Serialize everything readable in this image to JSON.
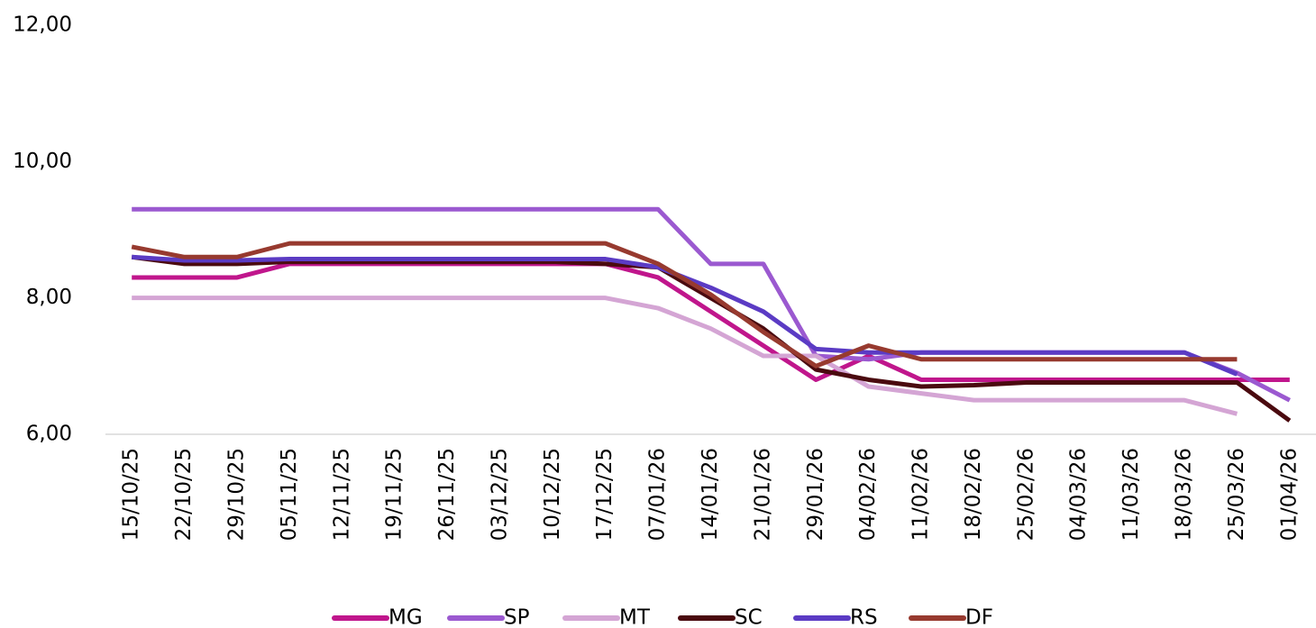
{
  "chart_data": {
    "type": "line",
    "categories": [
      "15/10/25",
      "22/10/25",
      "29/10/25",
      "05/11/25",
      "12/11/25",
      "19/11/25",
      "26/11/25",
      "03/12/25",
      "10/12/25",
      "17/12/25",
      "07/01/26",
      "14/01/26",
      "21/01/26",
      "29/01/26",
      "04/02/26",
      "11/02/26",
      "18/02/26",
      "25/02/26",
      "04/03/26",
      "11/03/26",
      "18/03/26",
      "25/03/26",
      "01/04/26"
    ],
    "series": [
      {
        "name": "MG",
        "color": "#c0168c",
        "values": [
          8.3,
          8.3,
          8.3,
          8.5,
          8.5,
          8.5,
          8.5,
          8.5,
          8.5,
          8.5,
          8.3,
          7.8,
          7.3,
          6.8,
          7.15,
          6.8,
          6.8,
          6.8,
          6.8,
          6.8,
          6.8,
          6.8,
          6.8
        ]
      },
      {
        "name": "SP",
        "color": "#9b59d0",
        "values": [
          9.3,
          9.3,
          9.3,
          9.3,
          9.3,
          9.3,
          9.3,
          9.3,
          9.3,
          9.3,
          9.3,
          8.5,
          8.5,
          7.15,
          7.1,
          7.2,
          7.2,
          7.2,
          7.2,
          7.2,
          7.2,
          6.9,
          6.5
        ]
      },
      {
        "name": "MT",
        "color": "#d4a5d4",
        "values": [
          8.0,
          8.0,
          8.0,
          8.0,
          8.0,
          8.0,
          8.0,
          8.0,
          8.0,
          8.0,
          7.85,
          7.55,
          7.15,
          7.15,
          6.7,
          6.6,
          6.5,
          6.5,
          6.5,
          6.5,
          6.5,
          6.3,
          null
        ]
      },
      {
        "name": "SC",
        "color": "#4a0a0f",
        "values": [
          8.6,
          8.5,
          8.5,
          8.53,
          8.53,
          8.53,
          8.53,
          8.53,
          8.53,
          8.5,
          8.45,
          8.0,
          7.55,
          6.95,
          6.8,
          6.7,
          6.72,
          6.76,
          6.76,
          6.76,
          6.76,
          6.76,
          6.2
        ]
      },
      {
        "name": "RS",
        "color": "#5b3bc4",
        "values": [
          8.6,
          8.55,
          8.55,
          8.57,
          8.57,
          8.57,
          8.57,
          8.57,
          8.57,
          8.57,
          8.45,
          8.15,
          7.8,
          7.25,
          7.2,
          7.2,
          7.2,
          7.2,
          7.2,
          7.2,
          7.2,
          6.88,
          null
        ]
      },
      {
        "name": "DF",
        "color": "#973a2f",
        "values": [
          8.75,
          8.6,
          8.6,
          8.8,
          8.8,
          8.8,
          8.8,
          8.8,
          8.8,
          8.8,
          8.5,
          8.05,
          7.5,
          7.0,
          7.3,
          7.1,
          7.1,
          7.1,
          7.1,
          7.1,
          7.1,
          7.1,
          null
        ]
      }
    ],
    "ylim": [
      6,
      12
    ],
    "yticks": [
      {
        "value": 6,
        "label": "6,00"
      },
      {
        "value": 8,
        "label": "8,00"
      },
      {
        "value": 10,
        "label": "10,00"
      },
      {
        "value": 12,
        "label": "12,00"
      }
    ],
    "grid": false,
    "legend": "bottom"
  }
}
